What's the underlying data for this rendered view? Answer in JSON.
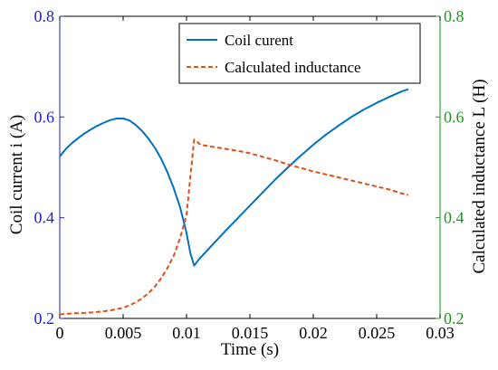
{
  "chart_data": {
    "type": "line",
    "title": "",
    "xlabel": "Time (s)",
    "ylabel_left": "Coil current i (A)",
    "ylabel_right": "Calculated inductance L (H)",
    "xlim": [
      0,
      0.03
    ],
    "ylim_left": [
      0.2,
      0.8
    ],
    "ylim_right": [
      0.2,
      0.8
    ],
    "x_ticks": [
      "0",
      "0.005",
      "0.01",
      "0.015",
      "0.02",
      "0.025",
      "0.03"
    ],
    "y_left_ticks": [
      "0.2",
      "0.4",
      "0.6",
      "0.8"
    ],
    "y_right_ticks": [
      "0.2",
      "0.4",
      "0.6",
      "0.8"
    ],
    "grid": false,
    "legend_position": "top-right",
    "colors": {
      "left_axis": "#1f1fd0",
      "right_axis": "#1a9a1a",
      "current": "#0072BD",
      "inductance": "#D95319"
    },
    "series": [
      {
        "name": "Coil curent",
        "axis": "left",
        "style": "solid",
        "x": [
          0,
          0.0005,
          0.001,
          0.0015,
          0.002,
          0.0025,
          0.003,
          0.0035,
          0.004,
          0.0045,
          0.005,
          0.0055,
          0.006,
          0.0065,
          0.007,
          0.0075,
          0.008,
          0.0085,
          0.009,
          0.0095,
          0.01,
          0.0103,
          0.0106,
          0.011,
          0.012,
          0.013,
          0.014,
          0.015,
          0.016,
          0.017,
          0.018,
          0.019,
          0.02,
          0.021,
          0.022,
          0.023,
          0.024,
          0.025,
          0.026,
          0.027,
          0.0275
        ],
        "y": [
          0.522,
          0.537,
          0.549,
          0.559,
          0.568,
          0.576,
          0.583,
          0.589,
          0.594,
          0.597,
          0.597,
          0.593,
          0.584,
          0.572,
          0.557,
          0.539,
          0.517,
          0.49,
          0.458,
          0.42,
          0.37,
          0.33,
          0.305,
          0.318,
          0.345,
          0.372,
          0.398,
          0.424,
          0.45,
          0.476,
          0.5,
          0.523,
          0.545,
          0.565,
          0.583,
          0.6,
          0.615,
          0.628,
          0.64,
          0.651,
          0.655
        ]
      },
      {
        "name": "Calculated inductance",
        "axis": "right",
        "style": "dashed",
        "x": [
          0,
          0.001,
          0.002,
          0.003,
          0.004,
          0.005,
          0.0055,
          0.006,
          0.0065,
          0.007,
          0.0075,
          0.008,
          0.0085,
          0.009,
          0.0095,
          0.01,
          0.0103,
          0.0106,
          0.0108,
          0.0111,
          0.012,
          0.013,
          0.014,
          0.015,
          0.016,
          0.017,
          0.018,
          0.019,
          0.02,
          0.021,
          0.022,
          0.023,
          0.024,
          0.025,
          0.026,
          0.027,
          0.0275
        ],
        "y": [
          0.208,
          0.21,
          0.211,
          0.213,
          0.216,
          0.221,
          0.226,
          0.232,
          0.24,
          0.25,
          0.263,
          0.28,
          0.3,
          0.325,
          0.36,
          0.405,
          0.48,
          0.555,
          0.552,
          0.545,
          0.541,
          0.537,
          0.533,
          0.528,
          0.521,
          0.514,
          0.506,
          0.499,
          0.492,
          0.486,
          0.48,
          0.474,
          0.468,
          0.462,
          0.456,
          0.448,
          0.445
        ]
      }
    ]
  }
}
